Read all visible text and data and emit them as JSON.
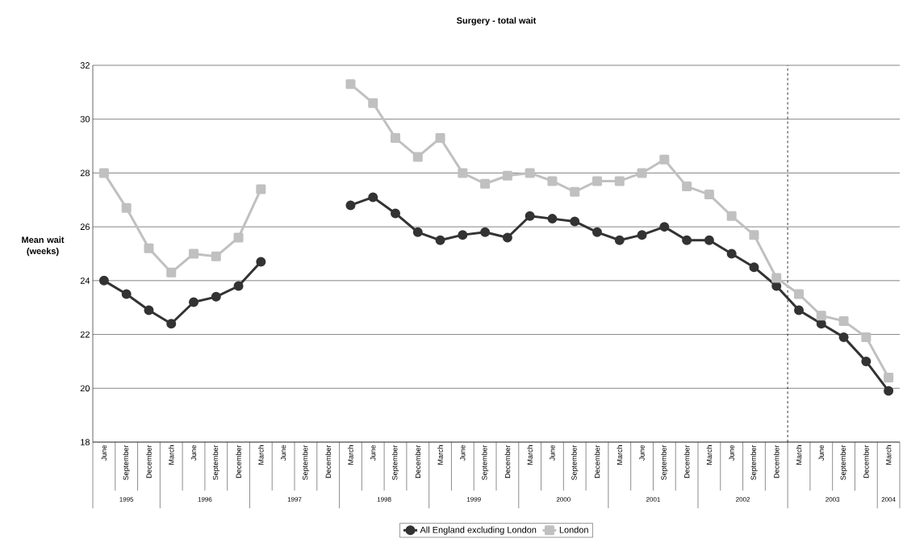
{
  "chart_data": {
    "type": "line",
    "title": "Surgery - total wait",
    "ylabel": "Mean wait (weeks)",
    "x": [
      "1995-06",
      "1995-09",
      "1995-12",
      "1996-03",
      "1996-06",
      "1996-09",
      "1996-12",
      "1997-03",
      "1997-06",
      "1997-09",
      "1997-12",
      "1998-03",
      "1998-06",
      "1998-09",
      "1998-12",
      "1999-03",
      "1999-06",
      "1999-09",
      "1999-12",
      "2000-03",
      "2000-06",
      "2000-09",
      "2000-12",
      "2001-03",
      "2001-06",
      "2001-09",
      "2001-12",
      "2002-03",
      "2002-06",
      "2002-09",
      "2002-12",
      "2003-03",
      "2003-06",
      "2003-09",
      "2003-12",
      "2004-03"
    ],
    "xticks": [
      {
        "value": "1995-06",
        "label": "June"
      },
      {
        "value": "1995-09",
        "label": "September"
      },
      {
        "value": "1995-12",
        "label": "December"
      },
      {
        "value": "1996-03",
        "label": "March"
      },
      {
        "value": "1996-06",
        "label": "June"
      },
      {
        "value": "1996-09",
        "label": "September"
      },
      {
        "value": "1996-12",
        "label": "December"
      },
      {
        "value": "1997-03",
        "label": "March"
      },
      {
        "value": "1997-06",
        "label": "June"
      },
      {
        "value": "1997-09",
        "label": "September"
      },
      {
        "value": "1997-12",
        "label": "December"
      },
      {
        "value": "1998-03",
        "label": "March"
      },
      {
        "value": "1998-06",
        "label": "June"
      },
      {
        "value": "1998-09",
        "label": "September"
      },
      {
        "value": "1998-12",
        "label": "December"
      },
      {
        "value": "1999-03",
        "label": "March"
      },
      {
        "value": "1999-06",
        "label": "June"
      },
      {
        "value": "1999-09",
        "label": "September"
      },
      {
        "value": "1999-12",
        "label": "December"
      },
      {
        "value": "2000-03",
        "label": "March"
      },
      {
        "value": "2000-06",
        "label": "June"
      },
      {
        "value": "2000-09",
        "label": "September"
      },
      {
        "value": "2000-12",
        "label": "December"
      },
      {
        "value": "2001-03",
        "label": "March"
      },
      {
        "value": "2001-06",
        "label": "June"
      },
      {
        "value": "2001-09",
        "label": "September"
      },
      {
        "value": "2001-12",
        "label": "December"
      },
      {
        "value": "2002-03",
        "label": "March"
      },
      {
        "value": "2002-06",
        "label": "June"
      },
      {
        "value": "2002-09",
        "label": "September"
      },
      {
        "value": "2002-12",
        "label": "December"
      },
      {
        "value": "2003-03",
        "label": "March"
      },
      {
        "value": "2003-06",
        "label": "June"
      },
      {
        "value": "2003-09",
        "label": "September"
      },
      {
        "value": "2003-12",
        "label": "December"
      },
      {
        "value": "2004-03",
        "label": "March"
      }
    ],
    "xlim": [
      "1995-04-16",
      "2004-04-16"
    ],
    "ylim": [
      18,
      32
    ],
    "yticks": [
      18,
      20,
      22,
      24,
      26,
      28,
      30,
      32
    ],
    "grid": "y",
    "legend": "bottom",
    "series": [
      {
        "name": "All England excluding London",
        "color": "#333333",
        "marker": "circle",
        "values": [
          24.0,
          23.5,
          22.9,
          22.4,
          23.2,
          23.4,
          23.8,
          24.7,
          null,
          null,
          null,
          26.8,
          27.1,
          26.5,
          25.8,
          25.5,
          25.7,
          25.8,
          25.6,
          26.4,
          26.3,
          26.2,
          25.8,
          25.5,
          25.7,
          26.0,
          25.5,
          25.5,
          25.0,
          24.5,
          23.8,
          22.9,
          22.4,
          21.9,
          21.0,
          19.9
        ]
      },
      {
        "name": "London",
        "color": "#c0c0c0",
        "marker": "square",
        "values": [
          28.0,
          26.7,
          25.2,
          24.3,
          25.0,
          24.9,
          25.6,
          27.4,
          null,
          null,
          null,
          31.3,
          30.6,
          29.3,
          28.6,
          29.3,
          28.0,
          27.6,
          27.9,
          28.0,
          27.7,
          27.3,
          27.7,
          27.7,
          28.0,
          28.5,
          27.5,
          27.2,
          26.4,
          25.7,
          24.1,
          23.5,
          22.7,
          22.5,
          21.9,
          20.4
        ]
      }
    ],
    "ref_lines": [
      {
        "axis": "x",
        "value": "2003-01-16",
        "line_style": "dashed",
        "color": "#000000"
      }
    ],
    "annotations": [
      "1995",
      "1996",
      "1997",
      "1998",
      "1999",
      "2000",
      "2001",
      "2002",
      "2003",
      "2004"
    ]
  }
}
